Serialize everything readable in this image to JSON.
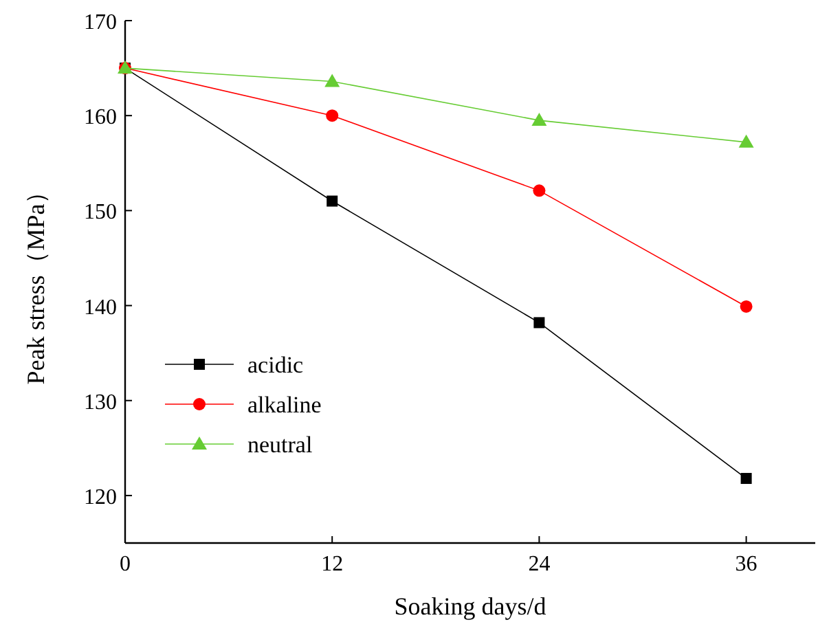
{
  "chart_data": {
    "type": "line",
    "xlabel": "Soaking days/d",
    "ylabel": "Peak stress（MPa）",
    "x": [
      0,
      12,
      24,
      36
    ],
    "xlim": [
      0,
      40
    ],
    "xticks": [
      0,
      12,
      24,
      36
    ],
    "ylim": [
      115,
      170
    ],
    "yticks": [
      120,
      130,
      140,
      150,
      160,
      170
    ],
    "series": [
      {
        "name": "acidic",
        "color": "#000000",
        "marker": "square",
        "values": [
          165,
          151,
          138.2,
          121.8
        ]
      },
      {
        "name": "alkaline",
        "color": "#ff0000",
        "marker": "circle",
        "values": [
          165,
          160,
          152.1,
          139.9
        ]
      },
      {
        "name": "neutral",
        "color": "#66cc33",
        "marker": "triangle",
        "values": [
          165,
          163.6,
          159.5,
          157.2
        ]
      }
    ],
    "legend": "bottom left",
    "grid": false,
    "line_style": "solid"
  }
}
